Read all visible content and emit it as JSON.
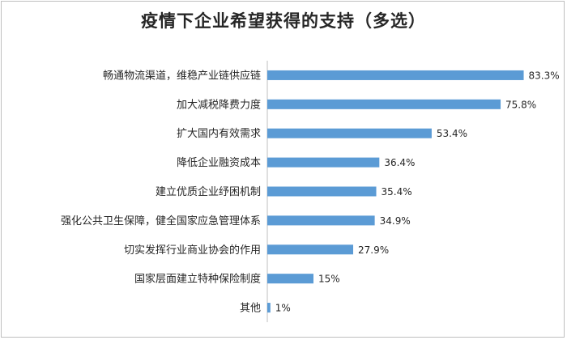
{
  "chart_data": {
    "type": "bar",
    "orientation": "horizontal",
    "title": "疫情下企业希望获得的支持（多选）",
    "categories": [
      "畅通物流渠道，维稳产业链供应链",
      "加大减税降费力度",
      "扩大国内有效需求",
      "降低企业融资成本",
      "建立优质企业纾困机制",
      "强化公共卫生保障，健全国家应急管理体系",
      "切实发挥行业商业协会的作用",
      "国家层面建立特种保险制度",
      "其他"
    ],
    "values": [
      83.3,
      75.8,
      53.4,
      36.4,
      35.4,
      34.9,
      27.9,
      15,
      1
    ],
    "value_labels": [
      "83.3%",
      "75.8%",
      "53.4%",
      "36.4%",
      "35.4%",
      "34.9%",
      "27.9%",
      "15%",
      "1%"
    ],
    "xlim": [
      0,
      100
    ],
    "grid": false,
    "legend": "none",
    "bar_color": "#5b9bd5"
  }
}
